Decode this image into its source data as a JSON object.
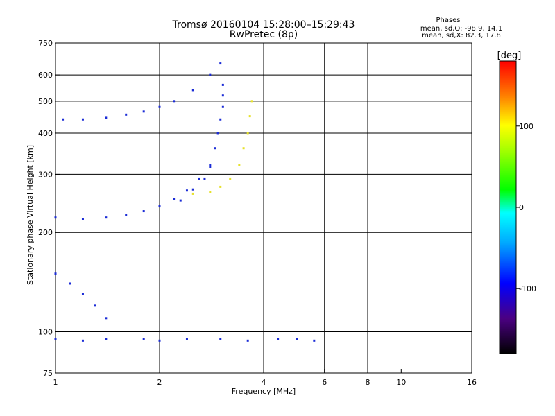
{
  "chart_data": {
    "type": "scatter",
    "title": "Tromsø 20160104 15:28:00–15:29:43",
    "subtitle": "RwPretec (8p)",
    "xlabel": "Frequency [MHz]",
    "ylabel": "Stationary phase Virtual Height [km]",
    "x_scale": "log",
    "y_scale": "log",
    "xlim": [
      1,
      16
    ],
    "ylim": [
      75,
      750
    ],
    "x_ticks": [
      1,
      2,
      4,
      6,
      8,
      10,
      16
    ],
    "x_tick_labels": [
      "1",
      "2",
      "4",
      "6",
      "8",
      "10",
      "16"
    ],
    "x_gridlines": [
      2,
      4,
      6,
      8
    ],
    "y_ticks": [
      75,
      100,
      200,
      300,
      400,
      500,
      600,
      750
    ],
    "y_tick_labels": [
      "75",
      "100",
      "200",
      "300",
      "400",
      "500",
      "600",
      "750"
    ],
    "y_gridlines": [
      100,
      200,
      300,
      400,
      500,
      600
    ],
    "grid": true,
    "phases_box": {
      "title": "Phases",
      "line_o": "mean, sd,O: -98.9, 14.1",
      "line_x": "mean, sd,X:  82.3, 17.8"
    },
    "colorbar": {
      "label": "[deg]",
      "range": [
        -180,
        180
      ],
      "ticks": [
        -100,
        0,
        100
      ],
      "tick_labels": [
        "-100",
        "0",
        "100"
      ],
      "colormap": "rainbow"
    },
    "traces": [
      {
        "name_hint": "O trace, F1/F2 upper",
        "phase": -100,
        "x": [
          1.05,
          1.2,
          1.4,
          1.6,
          1.8,
          2.0,
          2.2,
          2.5,
          2.8,
          3.0
        ],
        "y": [
          440,
          440,
          445,
          455,
          465,
          480,
          500,
          540,
          600,
          650
        ]
      },
      {
        "name_hint": "O trace, F2 cusp",
        "phase": -100,
        "x": [
          2.3,
          2.5,
          2.7,
          2.8,
          2.9,
          2.95,
          3.0,
          3.05,
          3.05,
          3.05
        ],
        "y": [
          250,
          270,
          290,
          320,
          360,
          400,
          440,
          480,
          520,
          560
        ]
      },
      {
        "name_hint": "O trace, F1 lower",
        "phase": -100,
        "x": [
          1.0,
          1.2,
          1.4,
          1.6,
          1.8,
          2.0,
          2.2,
          2.4,
          2.6,
          2.8
        ],
        "y": [
          222,
          220,
          222,
          226,
          232,
          240,
          252,
          268,
          290,
          315
        ]
      },
      {
        "name_hint": "X trace",
        "phase": 90,
        "x": [
          2.5,
          2.8,
          3.0,
          3.2,
          3.4,
          3.5,
          3.6,
          3.65,
          3.7
        ],
        "y": [
          262,
          265,
          275,
          290,
          320,
          360,
          400,
          450,
          500
        ]
      },
      {
        "name_hint": "Sporadic E",
        "phase": -100,
        "x": [
          1.0,
          1.2,
          1.4,
          1.8,
          2.0,
          2.4,
          3.0,
          3.6,
          4.4,
          5.0,
          5.6
        ],
        "y": [
          95,
          94,
          95,
          95,
          94,
          95,
          95,
          94,
          95,
          95,
          94
        ]
      },
      {
        "name_hint": "Lower E cluster",
        "phase": -100,
        "x": [
          1.0,
          1.1,
          1.2,
          1.3,
          1.4
        ],
        "y": [
          150,
          140,
          130,
          120,
          110
        ]
      }
    ]
  }
}
